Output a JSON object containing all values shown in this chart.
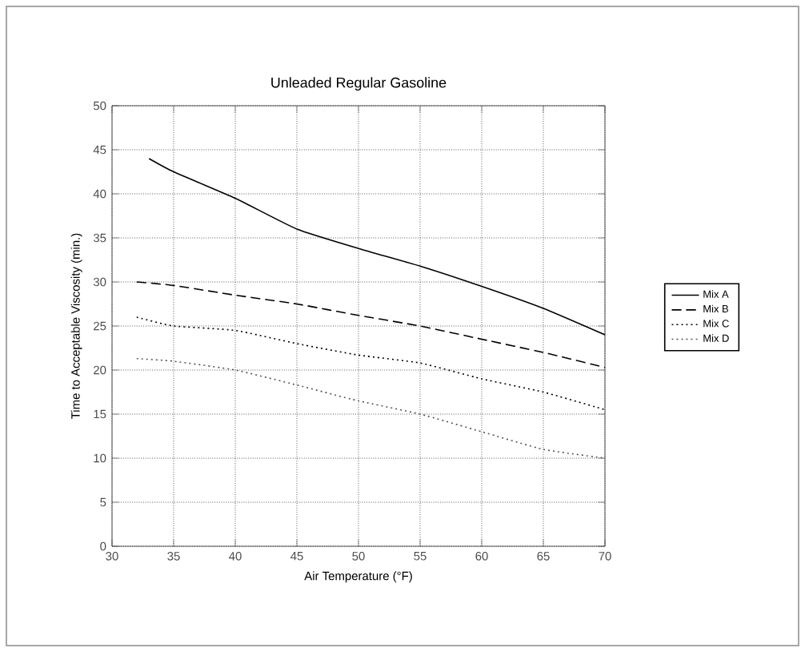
{
  "chart_data": {
    "type": "line",
    "title": "Unleaded Regular Gasoline",
    "xlabel": "Air Temperature (°F)",
    "ylabel": "Time to Acceptable Viscosity (min.)",
    "xlim": [
      30,
      70
    ],
    "ylim": [
      0,
      50
    ],
    "xticks": [
      30,
      35,
      40,
      45,
      50,
      55,
      60,
      65,
      70
    ],
    "yticks": [
      0,
      5,
      10,
      15,
      20,
      25,
      30,
      35,
      40,
      45,
      50
    ],
    "grid": true,
    "legend": "right",
    "marker": "none",
    "series": [
      {
        "name": "Mix A",
        "color": "#000000",
        "line_style": "solid",
        "x": [
          33,
          35,
          40,
          45,
          50,
          55,
          60,
          65,
          70
        ],
        "values": [
          44,
          42.5,
          39.5,
          36,
          33.8,
          31.8,
          29.5,
          27,
          24
        ]
      },
      {
        "name": "Mix B",
        "color": "#000000",
        "line_style": "dashed",
        "x": [
          32,
          35,
          40,
          45,
          50,
          55,
          60,
          65,
          70
        ],
        "values": [
          30,
          29.6,
          28.5,
          27.5,
          26.2,
          25,
          23.5,
          22,
          20.3
        ]
      },
      {
        "name": "Mix C",
        "color": "#000000",
        "line_style": "dotted",
        "x": [
          32,
          35,
          40,
          45,
          50,
          55,
          60,
          65,
          70
        ],
        "values": [
          26,
          25,
          24.5,
          23,
          21.7,
          20.8,
          19,
          17.5,
          15.5
        ]
      },
      {
        "name": "Mix D",
        "color": "#555555",
        "line_style": "dotted",
        "x": [
          32,
          35,
          40,
          45,
          50,
          55,
          60,
          65,
          70
        ],
        "values": [
          21.3,
          21,
          20,
          18.3,
          16.5,
          15,
          13,
          11,
          10
        ]
      }
    ]
  }
}
